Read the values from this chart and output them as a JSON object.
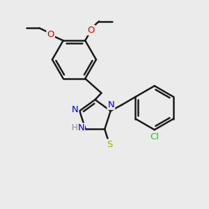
{
  "bg_color": "#ebebeb",
  "bond_color": "#1a1a1a",
  "bond_width": 1.8,
  "atom_colors": {
    "N": "#0000ee",
    "O": "#dd0000",
    "S": "#aaaa00",
    "Cl": "#33bb33",
    "H": "#888888",
    "C": "#1a1a1a"
  },
  "font_size": 9.5,
  "font_size_small": 8.5
}
